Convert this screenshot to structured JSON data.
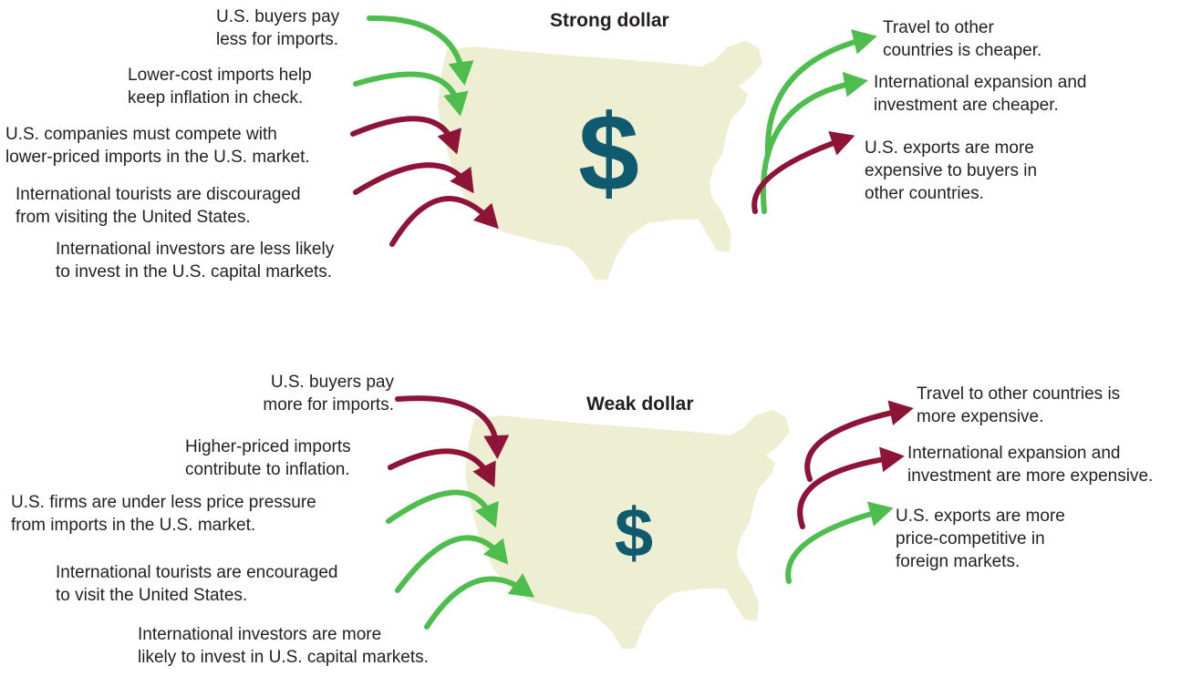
{
  "colors": {
    "map": "#eeeed3",
    "good": "#4dbd4d",
    "bad": "#8d1437",
    "dollar": "#0f5a6e",
    "text": "#231f20"
  },
  "strong": {
    "title": "Strong dollar",
    "symbol": "$",
    "left": [
      {
        "lines": [
          "U.S. buyers pay",
          "less for imports."
        ],
        "effect": "good"
      },
      {
        "lines": [
          "Lower-cost imports help",
          "keep inflation in check."
        ],
        "effect": "good"
      },
      {
        "lines": [
          "U.S. companies must compete with",
          "lower-priced imports in the U.S. market."
        ],
        "effect": "bad"
      },
      {
        "lines": [
          "International tourists are discouraged",
          "from visiting the United States."
        ],
        "effect": "bad"
      },
      {
        "lines": [
          "International investors are less likely",
          "to invest in the U.S. capital markets."
        ],
        "effect": "bad"
      }
    ],
    "right": [
      {
        "lines": [
          "Travel to other",
          "countries is cheaper."
        ],
        "effect": "good"
      },
      {
        "lines": [
          "International expansion and",
          "investment are cheaper."
        ],
        "effect": "good"
      },
      {
        "lines": [
          "U.S. exports are more",
          "expensive to buyers in",
          "other countries."
        ],
        "effect": "bad"
      }
    ]
  },
  "weak": {
    "title": "Weak dollar",
    "symbol": "$",
    "left": [
      {
        "lines": [
          "U.S. buyers pay",
          "more for imports."
        ],
        "effect": "bad"
      },
      {
        "lines": [
          "Higher-priced imports",
          "contribute to inflation."
        ],
        "effect": "bad"
      },
      {
        "lines": [
          "U.S. firms are under less price pressure",
          "from imports in the U.S. market."
        ],
        "effect": "good"
      },
      {
        "lines": [
          "International tourists are encouraged",
          "to visit the United States."
        ],
        "effect": "good"
      },
      {
        "lines": [
          "International investors are more",
          "likely to invest in U.S. capital markets."
        ],
        "effect": "good"
      }
    ],
    "right": [
      {
        "lines": [
          "Travel to other countries is",
          "more expensive."
        ],
        "effect": "bad"
      },
      {
        "lines": [
          "International expansion and",
          "investment are more expensive."
        ],
        "effect": "bad"
      },
      {
        "lines": [
          "U.S. exports are more",
          "price-competitive in",
          "foreign markets."
        ],
        "effect": "good"
      }
    ]
  }
}
